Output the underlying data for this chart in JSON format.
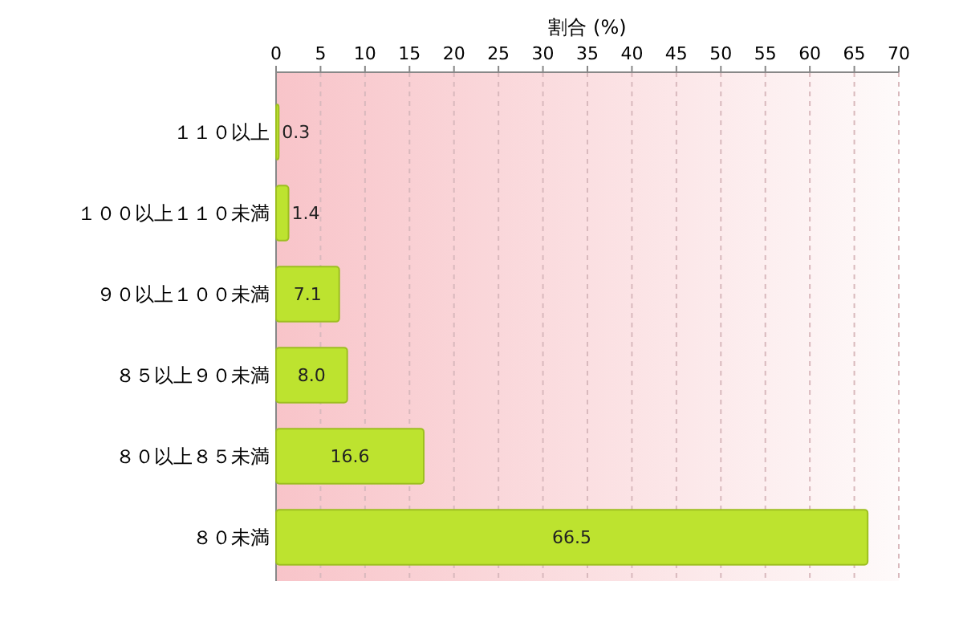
{
  "chart_data": {
    "type": "bar",
    "orientation": "horizontal",
    "xlabel": "割合 (%)",
    "categories": [
      "１１０以上",
      "１００以上１１０未満",
      "９０以上１００未満",
      "８５以上９０未満",
      "８０以上８５未満",
      "８０未満"
    ],
    "values": [
      0.3,
      1.4,
      7.1,
      8.0,
      16.6,
      66.5
    ],
    "value_labels": [
      "0.3",
      "1.4",
      "7.1",
      "8.0",
      "16.6",
      "66.5"
    ],
    "color": "#bde32f",
    "xlim": [
      0,
      70
    ],
    "xticks": [
      0,
      5,
      10,
      15,
      20,
      25,
      30,
      35,
      40,
      45,
      50,
      55,
      60,
      65,
      70
    ],
    "grid": "x"
  }
}
